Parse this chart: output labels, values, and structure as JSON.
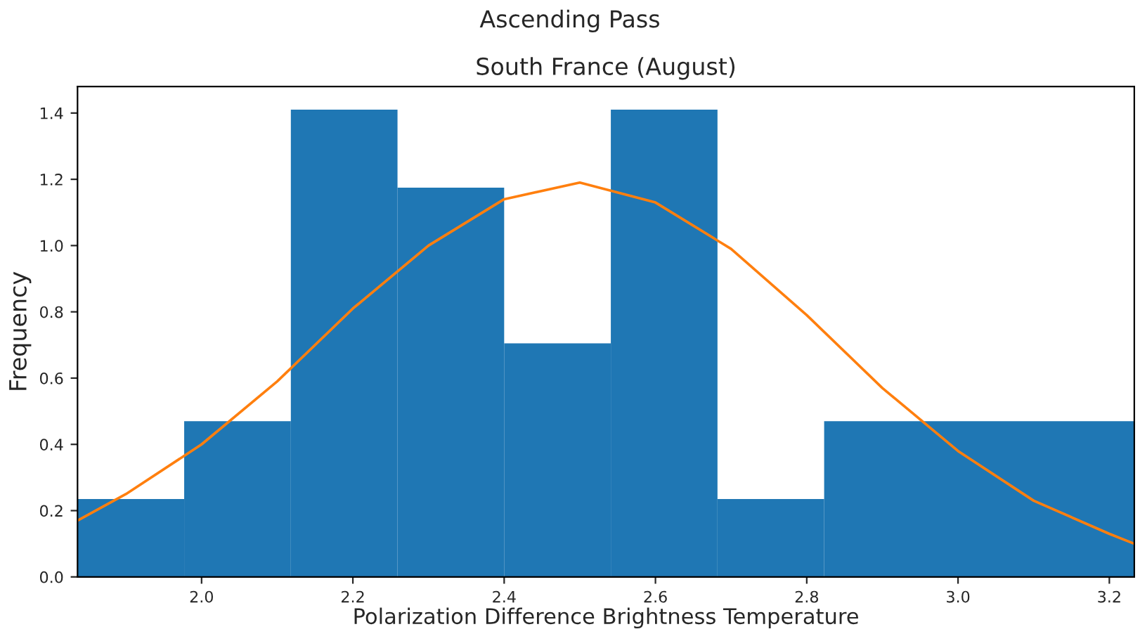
{
  "chart_data": {
    "type": "histogram",
    "title": "Ascending Pass",
    "subtitle": "South France (August)",
    "xlabel": "Polarization Difference Brightness Temperature",
    "ylabel": "Frequency",
    "series": [
      {
        "color": "#1f77b4",
        "bins": [
          1.836,
          1.977,
          2.118,
          2.259,
          2.4,
          2.541,
          2.682,
          2.823,
          3.233
        ],
        "values": [
          0.235,
          0.47,
          1.41,
          1.175,
          0.705,
          1.41,
          0.235,
          0.47
        ]
      },
      {
        "type": "line",
        "color": "#ff7f0e",
        "x": [
          1.836,
          1.9,
          2.0,
          2.1,
          2.2,
          2.3,
          2.4,
          2.5,
          2.6,
          2.7,
          2.8,
          2.9,
          3.0,
          3.1,
          3.2,
          3.233
        ],
        "values": [
          0.17,
          0.25,
          0.4,
          0.59,
          0.81,
          1.0,
          1.14,
          1.19,
          1.13,
          0.99,
          0.79,
          0.57,
          0.38,
          0.23,
          0.13,
          0.1
        ]
      }
    ],
    "xlim": [
      1.836,
      3.233
    ],
    "ylim": [
      0,
      1.48
    ],
    "xticks": [
      {
        "value": 2,
        "label": "2.0"
      },
      2.2,
      2.4,
      2.6,
      2.8,
      {
        "value": 3,
        "label": "3.0"
      },
      3.2
    ],
    "yticks": [
      {
        "value": 0,
        "label": "0.0"
      },
      0.2,
      0.4,
      0.6,
      0.8,
      {
        "value": 1,
        "label": "1.0"
      },
      1.2,
      1.4
    ],
    "grid": false,
    "legend": false
  }
}
